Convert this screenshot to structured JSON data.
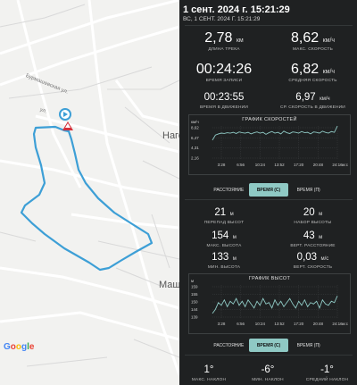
{
  "map": {
    "labels": {
      "street_1": "Бурмашевская ул.",
      "street_2": "ул.",
      "place_1": "Наго",
      "place_2": "Машк"
    },
    "google_logo": [
      "G",
      "o",
      "o",
      "g",
      "l",
      "e"
    ]
  },
  "header": {
    "title": "1 сент. 2024 г. 15:21:29",
    "subtitle": "ВС, 1 СЕНТ. 2024 Г. 15:21:29"
  },
  "stats": {
    "track_length": {
      "value": "2,78",
      "unit": "км",
      "label": "ДЛИНА ТРЕКА"
    },
    "max_speed": {
      "value": "8,62",
      "unit": "км/ч",
      "label": "МАКС. СКОРОСТЬ"
    },
    "record_time": {
      "value": "00:24:26",
      "label": "ВРЕМЯ ЗАПИСИ"
    },
    "avg_speed": {
      "value": "6,82",
      "unit": "км/ч",
      "label": "СРЕДНЯЯ СКОРОСТЬ"
    },
    "moving_time": {
      "value": "00:23:55",
      "label": "ВРЕМЯ В ДВИЖЕНИИ"
    },
    "avg_moving_speed": {
      "value": "6,97",
      "unit": "км/ч",
      "label": "СР. СКОРОСТЬ В ДВИЖЕНИИ"
    },
    "elevation_drop": {
      "value": "21",
      "unit": "м",
      "label": "ПЕРЕПАД ВЫСОТ"
    },
    "elevation_gain": {
      "value": "20",
      "unit": "м",
      "label": "НАБОР ВЫСОТЫ"
    },
    "max_altitude": {
      "value": "154",
      "unit": "м",
      "label": "МАКС. ВЫСОТА"
    },
    "vertical_distance": {
      "value": "43",
      "unit": "м",
      "label": "ВЕРТ. РАССТОЯНИЕ"
    },
    "min_altitude": {
      "value": "133",
      "unit": "м",
      "label": "МИН. ВЫСОТА"
    },
    "vertical_speed": {
      "value": "0,03",
      "unit": "м/с",
      "label": "ВЕРТ. СКОРОСТЬ"
    },
    "max_incline": {
      "value": "1°",
      "label": "МАКС. НАКЛОН"
    },
    "min_incline": {
      "value": "-6°",
      "label": "МИН. НАКЛОН"
    },
    "avg_incline": {
      "value": "-1°",
      "label": "СРЕДНИЙ НАКЛОН"
    }
  },
  "segments_1": {
    "distance": "РАССТОЯНИЕ",
    "time_s": "ВРЕМЯ (С)",
    "time_p": "ВРЕМЯ (П)"
  },
  "segments_2": {
    "distance": "РАССТОЯНИЕ",
    "time_s": "ВРЕМЯ (С)",
    "time_p": "ВРЕМЯ (П)"
  },
  "colors": {
    "accent": "#8fc9c4",
    "track": "#3d9fd6",
    "chart_line": "#8fc9c4",
    "background": "#1f2122"
  },
  "chart_data": [
    {
      "type": "line",
      "title": "ГРАФИК СКОРОСТЕЙ",
      "ylabel": "км/ч",
      "y_ticks": [
        "8,62",
        "6,47",
        "4,31",
        "2,16"
      ],
      "x_ticks": [
        "3:28",
        "6:56",
        "10:24",
        "13:52",
        "17:20",
        "20:48",
        "24:16"
      ],
      "x_unit": "м:с",
      "ylim": [
        0,
        8.62
      ],
      "values": [
        5.0,
        6.3,
        6.6,
        6.8,
        6.7,
        6.9,
        6.8,
        7.0,
        6.7,
        7.1,
        6.9,
        6.8,
        7.0,
        6.6,
        6.9,
        7.1,
        6.8,
        7.0,
        6.5,
        6.9,
        7.2,
        6.8,
        7.0,
        6.6,
        7.3,
        6.9,
        6.7,
        7.1,
        7.0,
        6.8,
        7.2,
        6.9,
        7.0,
        6.6,
        7.1,
        7.0,
        6.8,
        7.3,
        7.0,
        6.8,
        7.2,
        7.0,
        8.6
      ]
    },
    {
      "type": "line",
      "title": "ГРАФИК ВЫСОТ",
      "ylabel": "м",
      "y_ticks": [
        "159",
        "155",
        "150",
        "144",
        "139"
      ],
      "x_ticks": [
        "3:28",
        "6:56",
        "10:24",
        "13:52",
        "17:20",
        "20:48",
        "24:16"
      ],
      "x_unit": "м:с",
      "ylim": [
        135,
        160
      ],
      "values": [
        139,
        142,
        147,
        145,
        149,
        144,
        148,
        146,
        150,
        145,
        148,
        144,
        149,
        146,
        143,
        148,
        145,
        150,
        146,
        147,
        143,
        149,
        145,
        148,
        144,
        147,
        150,
        146,
        143,
        148,
        145,
        149,
        144,
        147,
        146,
        148,
        143,
        149,
        146,
        145,
        148,
        147,
        152
      ]
    }
  ]
}
